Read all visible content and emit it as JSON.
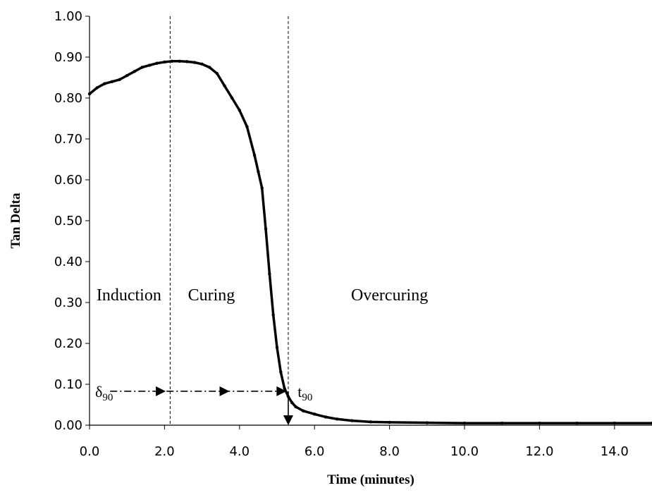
{
  "chart_data": {
    "type": "line",
    "xlabel": "Time (minutes)",
    "ylabel": "Tan Delta",
    "xlim": [
      0,
      15
    ],
    "ylim": [
      0,
      1
    ],
    "x_ticks": [
      "0.0",
      "2.0",
      "4.0",
      "6.0",
      "8.0",
      "10.0",
      "12.0",
      "14.0"
    ],
    "x_tick_values": [
      0,
      2,
      4,
      6,
      8,
      10,
      12,
      14
    ],
    "y_ticks": [
      "0.00",
      "0.10",
      "0.20",
      "0.30",
      "0.40",
      "0.50",
      "0.60",
      "0.70",
      "0.80",
      "0.90",
      "1.00"
    ],
    "y_tick_values": [
      0,
      0.1,
      0.2,
      0.3,
      0.4,
      0.5,
      0.6,
      0.7,
      0.8,
      0.9,
      1.0
    ],
    "grid": false,
    "series": [
      {
        "color": "#000000",
        "x": [
          0.0,
          0.2,
          0.4,
          0.6,
          0.8,
          1.0,
          1.2,
          1.4,
          1.6,
          1.8,
          2.0,
          2.2,
          2.4,
          2.6,
          2.8,
          3.0,
          3.2,
          3.4,
          3.6,
          3.8,
          4.0,
          4.2,
          4.4,
          4.5,
          4.6,
          4.7,
          4.8,
          4.9,
          5.0,
          5.1,
          5.2,
          5.3,
          5.4,
          5.5,
          5.7,
          6.0,
          6.3,
          6.6,
          7.0,
          7.5,
          8.0,
          9.0,
          10.0,
          11.0,
          12.0,
          13.0,
          14.0,
          15.0
        ],
        "y": [
          0.81,
          0.825,
          0.835,
          0.84,
          0.845,
          0.855,
          0.865,
          0.875,
          0.88,
          0.885,
          0.888,
          0.89,
          0.89,
          0.889,
          0.887,
          0.883,
          0.875,
          0.86,
          0.83,
          0.8,
          0.77,
          0.73,
          0.66,
          0.62,
          0.58,
          0.48,
          0.37,
          0.27,
          0.19,
          0.13,
          0.09,
          0.07,
          0.055,
          0.045,
          0.035,
          0.027,
          0.02,
          0.015,
          0.011,
          0.008,
          0.007,
          0.006,
          0.005,
          0.005,
          0.005,
          0.005,
          0.005,
          0.005
        ]
      }
    ],
    "vlines": [
      2.15,
      5.3
    ],
    "regions": [
      {
        "label": "Induction",
        "x": 1.05,
        "y": 0.305
      },
      {
        "label": "Curing",
        "x": 3.25,
        "y": 0.305
      },
      {
        "label": "Overcuring",
        "x": 8.0,
        "y": 0.305
      }
    ],
    "annotations": {
      "delta90": {
        "label": "δ",
        "sub": "90",
        "x": 0.15,
        "y": 0.083
      },
      "t90": {
        "label": "t",
        "sub": "90",
        "x": 5.55,
        "y": 0.083
      },
      "arrow_line": {
        "x_start": 0.55,
        "x_end": 5.3,
        "y": 0.083,
        "arrowheads_at": [
          1.9,
          3.6,
          5.12
        ]
      },
      "down_arrow": {
        "x": 5.3,
        "y_start": 0.083,
        "y_end": 0.0
      }
    }
  }
}
